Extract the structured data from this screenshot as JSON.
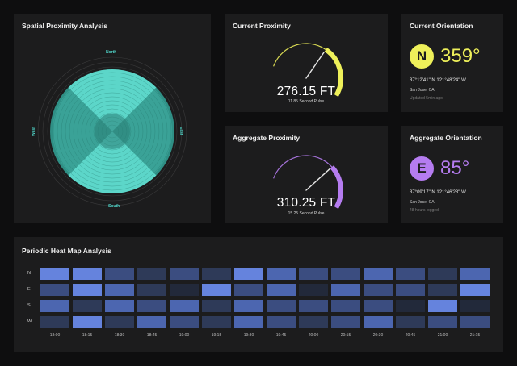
{
  "spatial": {
    "title": "Spatial Proximity Analysis",
    "directions": {
      "north": "North",
      "south": "South",
      "east": "East",
      "west": "West"
    },
    "accent": "#4fd1c5"
  },
  "current_proximity": {
    "title": "Current Proximity",
    "value": "276.15 FT",
    "sub": "11.85 Second Pulse",
    "fill_fraction": 0.55,
    "accent": "#eef05a"
  },
  "aggregate_proximity": {
    "title": "Aggregate Proximity",
    "value": "310.25 FT",
    "sub": "15.25 Second Pulse",
    "fill_fraction": 0.62,
    "accent": "#b57cf0"
  },
  "current_orientation": {
    "title": "Current Orientation",
    "letter": "N",
    "degrees": "359°",
    "coords": "37°12'41\" N 121°48'24\" W",
    "city": "San Jose, CA",
    "meta": "Updated 5min ago",
    "accent": "#eef05a"
  },
  "aggregate_orientation": {
    "title": "Aggregate Orientation",
    "letter": "E",
    "degrees": "85°",
    "coords": "37°09'17\" N 121°46'28\" W",
    "city": "San Jose, CA",
    "meta": "48 hours logged",
    "accent": "#b57cf0"
  },
  "heatmap": {
    "title": "Periodic Heat Map Analysis",
    "rows": [
      "N",
      "E",
      "S",
      "W"
    ],
    "columns": [
      "18:00",
      "18:15",
      "18:30",
      "18:45",
      "19:00",
      "19:15",
      "19:30",
      "19:45",
      "20:00",
      "20:15",
      "20:30",
      "20:45",
      "21:00",
      "21:15"
    ],
    "levels": [
      [
        4,
        4,
        2,
        1,
        2,
        1,
        4,
        3,
        2,
        2,
        3,
        2,
        1,
        3
      ],
      [
        2,
        4,
        3,
        1,
        0,
        4,
        2,
        3,
        0,
        3,
        2,
        2,
        1,
        4
      ],
      [
        3,
        1,
        3,
        2,
        3,
        1,
        3,
        2,
        2,
        2,
        2,
        0,
        4,
        0
      ],
      [
        1,
        4,
        1,
        3,
        2,
        1,
        3,
        2,
        1,
        2,
        3,
        1,
        2,
        2
      ]
    ],
    "palette": [
      "#22293a",
      "#2e3a58",
      "#3b4d80",
      "#4c66b0",
      "#6583dd"
    ]
  }
}
